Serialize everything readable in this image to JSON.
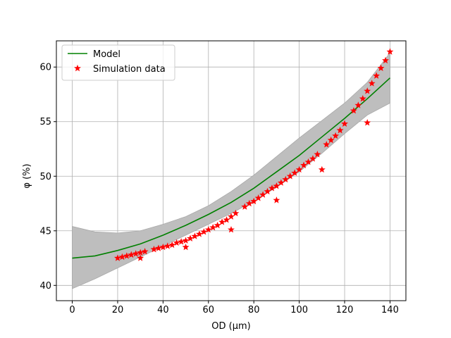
{
  "chart_data": {
    "type": "line",
    "xlabel": "OD (μm)",
    "ylabel": "φ (%)",
    "xlim": [
      -7,
      147
    ],
    "ylim": [
      38.6,
      62.4
    ],
    "xticks": [
      0,
      20,
      40,
      60,
      80,
      100,
      120,
      140
    ],
    "yticks": [
      40,
      45,
      50,
      55,
      60
    ],
    "grid": true,
    "legend_position": "top-left",
    "model": {
      "name": "Model",
      "color": "#008000",
      "x": [
        0,
        10,
        20,
        30,
        40,
        50,
        60,
        70,
        80,
        90,
        100,
        110,
        120,
        130,
        140
      ],
      "y": [
        42.5,
        42.7,
        43.2,
        43.8,
        44.6,
        45.5,
        46.5,
        47.6,
        48.9,
        50.4,
        51.9,
        53.6,
        55.3,
        57.1,
        59.0
      ]
    },
    "band": {
      "color": "#bebebe",
      "x": [
        0,
        10,
        20,
        30,
        40,
        50,
        60,
        70,
        80,
        90,
        100,
        110,
        120,
        130,
        140
      ],
      "upper": [
        45.4,
        44.9,
        44.8,
        45.0,
        45.6,
        46.3,
        47.3,
        48.6,
        50.1,
        51.8,
        53.5,
        55.1,
        56.7,
        58.6,
        61.3
      ],
      "lower": [
        39.7,
        40.6,
        41.6,
        42.6,
        43.6,
        44.6,
        45.6,
        46.6,
        47.7,
        49.0,
        50.4,
        52.1,
        53.9,
        55.6,
        56.7
      ]
    },
    "scatter": {
      "name": "Simulation data",
      "color": "#ff0000",
      "marker": "star",
      "points": [
        [
          20,
          42.5
        ],
        [
          22,
          42.6
        ],
        [
          24,
          42.7
        ],
        [
          26,
          42.8
        ],
        [
          28,
          42.9
        ],
        [
          30,
          43.0
        ],
        [
          30,
          42.5
        ],
        [
          32,
          43.1
        ],
        [
          36,
          43.3
        ],
        [
          38,
          43.4
        ],
        [
          40,
          43.5
        ],
        [
          42,
          43.6
        ],
        [
          44,
          43.7
        ],
        [
          46,
          43.9
        ],
        [
          48,
          44.0
        ],
        [
          50,
          44.1
        ],
        [
          50,
          43.5
        ],
        [
          52,
          44.3
        ],
        [
          54,
          44.5
        ],
        [
          56,
          44.7
        ],
        [
          58,
          44.9
        ],
        [
          60,
          45.1
        ],
        [
          62,
          45.3
        ],
        [
          64,
          45.5
        ],
        [
          66,
          45.8
        ],
        [
          68,
          46.0
        ],
        [
          70,
          46.3
        ],
        [
          70,
          45.1
        ],
        [
          72,
          46.6
        ],
        [
          76,
          47.2
        ],
        [
          78,
          47.5
        ],
        [
          80,
          47.7
        ],
        [
          82,
          48.0
        ],
        [
          84,
          48.3
        ],
        [
          86,
          48.6
        ],
        [
          88,
          48.9
        ],
        [
          90,
          49.1
        ],
        [
          90,
          47.8
        ],
        [
          92,
          49.4
        ],
        [
          94,
          49.7
        ],
        [
          96,
          50.0
        ],
        [
          98,
          50.3
        ],
        [
          100,
          50.6
        ],
        [
          102,
          51.0
        ],
        [
          104,
          51.3
        ],
        [
          106,
          51.6
        ],
        [
          108,
          52.0
        ],
        [
          110,
          50.6
        ],
        [
          112,
          52.9
        ],
        [
          114,
          53.3
        ],
        [
          116,
          53.7
        ],
        [
          118,
          54.2
        ],
        [
          120,
          54.8
        ],
        [
          124,
          56.0
        ],
        [
          126,
          56.5
        ],
        [
          128,
          57.1
        ],
        [
          130,
          57.8
        ],
        [
          130,
          54.9
        ],
        [
          132,
          58.5
        ],
        [
          134,
          59.2
        ],
        [
          136,
          59.9
        ],
        [
          138,
          60.6
        ],
        [
          140,
          61.4
        ]
      ]
    }
  }
}
